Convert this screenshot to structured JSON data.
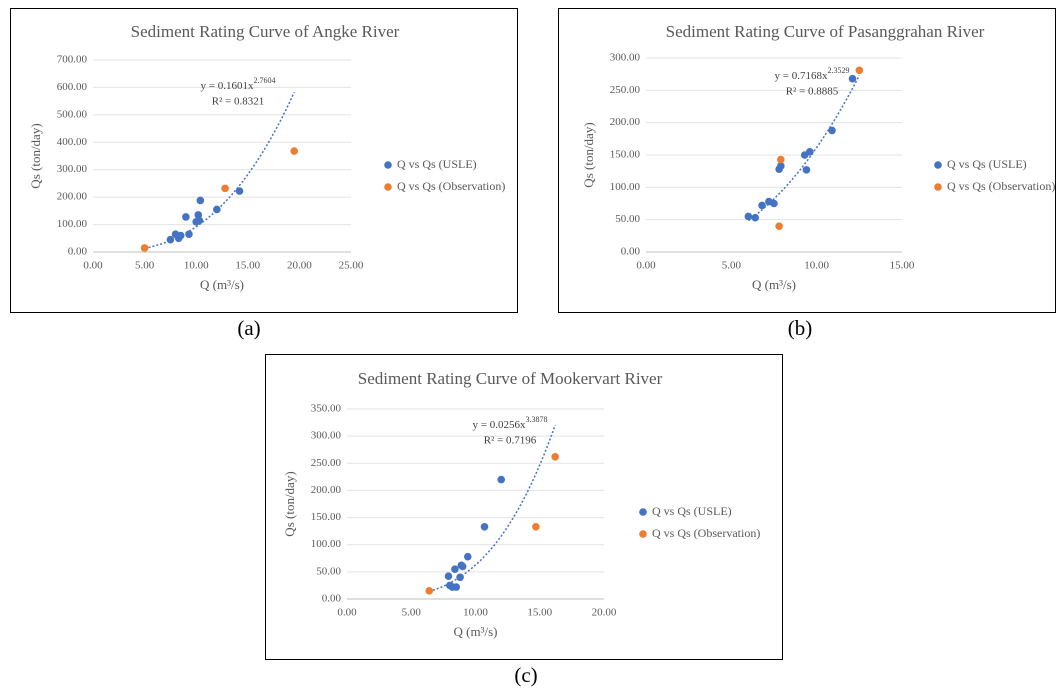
{
  "chart_data": [
    {
      "type": "scatter",
      "title": "Sediment Rating Curve of Angke River",
      "xlabel": "Q (m³/s)",
      "ylabel": "Qs (ton/day)",
      "equation": "y = 0.1601x",
      "equation_exponent": "2.7604",
      "r2": "R² = 0.8321",
      "caption": "(a)",
      "legend": "right",
      "grid": true,
      "xlim": [
        0,
        25
      ],
      "xticks": [
        {
          "value": 0,
          "label": "0.00"
        },
        {
          "value": 5,
          "label": "5.00"
        },
        {
          "value": 10,
          "label": "10.00"
        },
        {
          "value": 15,
          "label": "15.00"
        },
        {
          "value": 20,
          "label": "20.00"
        },
        {
          "value": 25,
          "label": "25.00"
        }
      ],
      "ylim": [
        0,
        700
      ],
      "yticks": [
        {
          "value": 0,
          "label": "0.00"
        },
        {
          "value": 100,
          "label": "100.00"
        },
        {
          "value": 200,
          "label": "200.00"
        },
        {
          "value": 300,
          "label": "300.00"
        },
        {
          "value": 400,
          "label": "400.00"
        },
        {
          "value": 500,
          "label": "500.00"
        },
        {
          "value": 600,
          "label": "600.00"
        },
        {
          "value": 700,
          "label": "700.00"
        }
      ],
      "series": [
        {
          "name": "Q vs Qs (USLE)",
          "color": "#4472c4",
          "x": [
            7.5,
            8,
            8.3,
            8.5,
            9,
            9.3,
            10,
            10.2,
            10.3,
            10.4,
            12,
            14.2
          ],
          "values": [
            45,
            65,
            50,
            60,
            128,
            65,
            110,
            135,
            115,
            188,
            155,
            222
          ]
        },
        {
          "name": "Q vs Qs (Observation)",
          "color": "#ed7d31",
          "x": [
            5,
            12.8,
            19.5
          ],
          "values": [
            15,
            232,
            368
          ]
        }
      ]
    },
    {
      "type": "scatter",
      "title": "Sediment Rating Curve of Pasanggrahan River",
      "xlabel": "Q (m³/s)",
      "ylabel": "Qs (ton/day)",
      "equation": "y = 0.7168x",
      "equation_exponent": "2.3529",
      "r2": "R² = 0.8885",
      "caption": "(b)",
      "legend": "right",
      "grid": true,
      "xlim": [
        0,
        15
      ],
      "xticks": [
        {
          "value": 0,
          "label": "0.00"
        },
        {
          "value": 5,
          "label": "5.00"
        },
        {
          "value": 10,
          "label": "10.00"
        },
        {
          "value": 15,
          "label": "15.00"
        }
      ],
      "ylim": [
        0,
        300
      ],
      "yticks": [
        {
          "value": 0,
          "label": "0.00"
        },
        {
          "value": 50,
          "label": "50.00"
        },
        {
          "value": 100,
          "label": "100.00"
        },
        {
          "value": 150,
          "label": "150.00"
        },
        {
          "value": 200,
          "label": "200.00"
        },
        {
          "value": 250,
          "label": "250.00"
        },
        {
          "value": 300,
          "label": "300.00"
        }
      ],
      "series": [
        {
          "name": "Q vs Qs (USLE)",
          "color": "#4472c4",
          "x": [
            6,
            6.4,
            6.8,
            7.2,
            7.5,
            7.8,
            7.9,
            9.3,
            9.4,
            9.6,
            10.9,
            12.1
          ],
          "values": [
            55,
            53,
            72,
            78,
            75,
            128,
            133,
            150,
            127,
            155,
            188,
            268
          ]
        },
        {
          "name": "Q vs Qs (Observation)",
          "color": "#ed7d31",
          "x": [
            7.9,
            7.8,
            12.5
          ],
          "values": [
            143,
            40,
            281
          ]
        }
      ]
    },
    {
      "type": "scatter",
      "title": "Sediment Rating Curve of Mookervart River",
      "xlabel": "Q (m³/s)",
      "ylabel": "Qs (ton/day)",
      "equation": "y = 0.0256x",
      "equation_exponent": "3.3878",
      "r2": "R² = 0.7196",
      "caption": "(c)",
      "legend": "right",
      "grid": true,
      "xlim": [
        0,
        20
      ],
      "xticks": [
        {
          "value": 0,
          "label": "0.00"
        },
        {
          "value": 5,
          "label": "5.00"
        },
        {
          "value": 10,
          "label": "10.00"
        },
        {
          "value": 15,
          "label": "15.00"
        },
        {
          "value": 20,
          "label": "20.00"
        }
      ],
      "ylim": [
        0,
        350
      ],
      "yticks": [
        {
          "value": 0,
          "label": "0.00"
        },
        {
          "value": 50,
          "label": "50.00"
        },
        {
          "value": 100,
          "label": "100.00"
        },
        {
          "value": 150,
          "label": "150.00"
        },
        {
          "value": 200,
          "label": "200.00"
        },
        {
          "value": 250,
          "label": "250.00"
        },
        {
          "value": 300,
          "label": "300.00"
        },
        {
          "value": 350,
          "label": "350.00"
        }
      ],
      "series": [
        {
          "name": "Q vs Qs (USLE)",
          "color": "#4472c4",
          "x": [
            7.9,
            8,
            8.2,
            8.4,
            8.5,
            8.8,
            8.9,
            9,
            9.4,
            10.7,
            12
          ],
          "values": [
            42,
            25,
            22,
            55,
            22,
            40,
            62,
            60,
            78,
            133,
            220
          ]
        },
        {
          "name": "Q vs Qs (Observation)",
          "color": "#ed7d31",
          "x": [
            6.4,
            14.7,
            16.2
          ],
          "values": [
            15,
            133,
            262
          ]
        }
      ]
    }
  ]
}
